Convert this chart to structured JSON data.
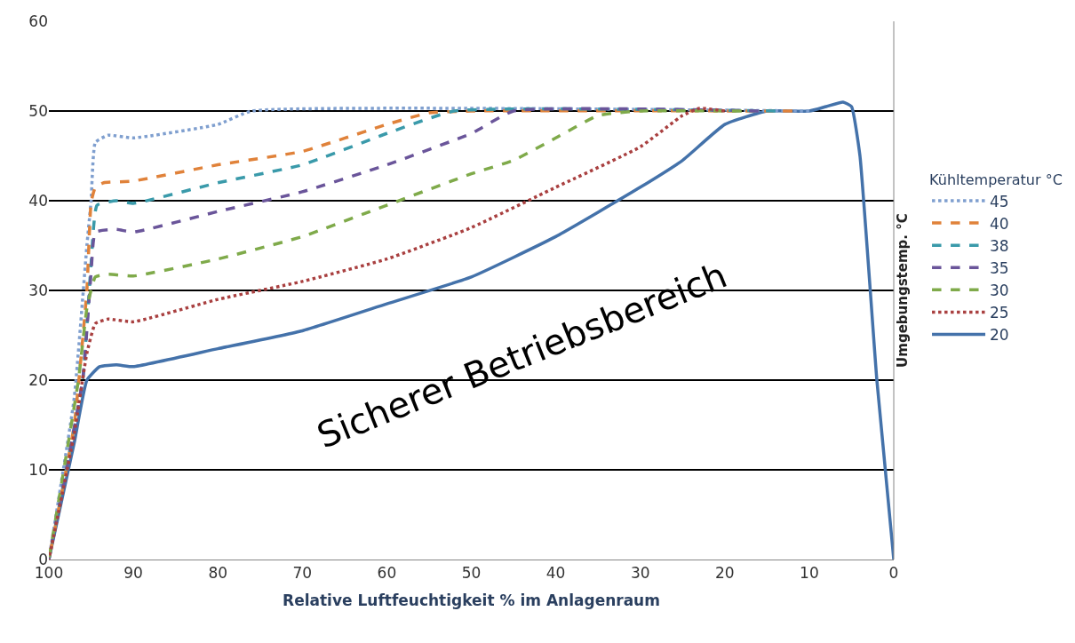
{
  "chart_data": {
    "type": "line",
    "xlabel": "Relative Luftfeuchtigkeit % im Anlagenraum",
    "ylabel": "Umgebungstemp. °C",
    "legend_title": "Kühltemperatur °C",
    "annotations": [
      "Sicherer Betriebsbereich"
    ],
    "xlim": [
      100,
      0
    ],
    "xticks": [
      100,
      90,
      80,
      70,
      60,
      50,
      40,
      30,
      20,
      10,
      0
    ],
    "ylim": [
      0,
      60
    ],
    "yticks": [
      0,
      10,
      20,
      30,
      40,
      50,
      60
    ],
    "grid": "y",
    "legend": "right",
    "marker": "none",
    "series": [
      {
        "name": "45",
        "color": "#7f9fcf",
        "line_style": "dotted",
        "x": [
          100,
          97,
          95.5,
          95,
          94.5,
          93,
          90,
          80,
          76,
          10
        ],
        "values": [
          0,
          18,
          35,
          40,
          46.5,
          47.3,
          47,
          48.5,
          50,
          50
        ]
      },
      {
        "name": "40",
        "color": "#e0823a",
        "line_style": "dashed",
        "x": [
          100,
          97,
          95.5,
          95,
          94.5,
          93.5,
          90,
          80,
          70,
          60,
          55,
          50,
          12
        ],
        "values": [
          0,
          15,
          30,
          39.8,
          41.5,
          42,
          42.2,
          44,
          45.5,
          48.5,
          49.8,
          50,
          50
        ]
      },
      {
        "name": "38",
        "color": "#3a9aaa",
        "line_style": "dashed",
        "x": [
          100,
          96,
          95,
          94.3,
          92,
          90,
          80,
          70,
          60,
          52,
          14
        ],
        "values": [
          0,
          20,
          33,
          39.5,
          40,
          39.7,
          42,
          44,
          47.5,
          50,
          50
        ]
      },
      {
        "name": "35",
        "color": "#6a559a",
        "line_style": "dashed",
        "x": [
          100,
          96,
          95,
          94.5,
          92,
          90,
          80,
          70,
          60,
          50,
          45,
          16
        ],
        "values": [
          0,
          20,
          32,
          36.5,
          36.8,
          36.5,
          38.8,
          41,
          44,
          47.5,
          50,
          50
        ]
      },
      {
        "name": "30",
        "color": "#7faa4a",
        "line_style": "dashed",
        "x": [
          100,
          96.5,
          95.5,
          94.5,
          93,
          90,
          80,
          70,
          60,
          50,
          45,
          40,
          35,
          30,
          18
        ],
        "values": [
          0,
          20,
          28,
          31.5,
          31.8,
          31.6,
          33.5,
          36,
          39.5,
          43,
          44.5,
          47,
          49.5,
          50,
          50
        ]
      },
      {
        "name": "25",
        "color": "#a94040",
        "line_style": "dotted",
        "x": [
          100,
          97,
          95.5,
          94.5,
          93,
          90,
          80,
          70,
          60,
          50,
          40,
          30,
          25,
          23,
          20
        ],
        "values": [
          0,
          14,
          23,
          26.3,
          26.8,
          26.5,
          29,
          31,
          33.5,
          37,
          41.5,
          46,
          49.5,
          50.3,
          50
        ]
      },
      {
        "name": "20",
        "color": "#4472aa",
        "line_style": "solid",
        "x": [
          100,
          97,
          95.5,
          94,
          92,
          90,
          80,
          70,
          60,
          50,
          40,
          30,
          25,
          20,
          15,
          10,
          8,
          6,
          5,
          4,
          2,
          0
        ],
        "values": [
          0,
          13,
          20,
          21.5,
          21.7,
          21.5,
          23.5,
          25.5,
          28.5,
          31.5,
          36,
          41.5,
          44.5,
          48.5,
          50,
          50,
          50.5,
          51,
          50.5,
          45,
          20,
          0
        ]
      }
    ]
  }
}
